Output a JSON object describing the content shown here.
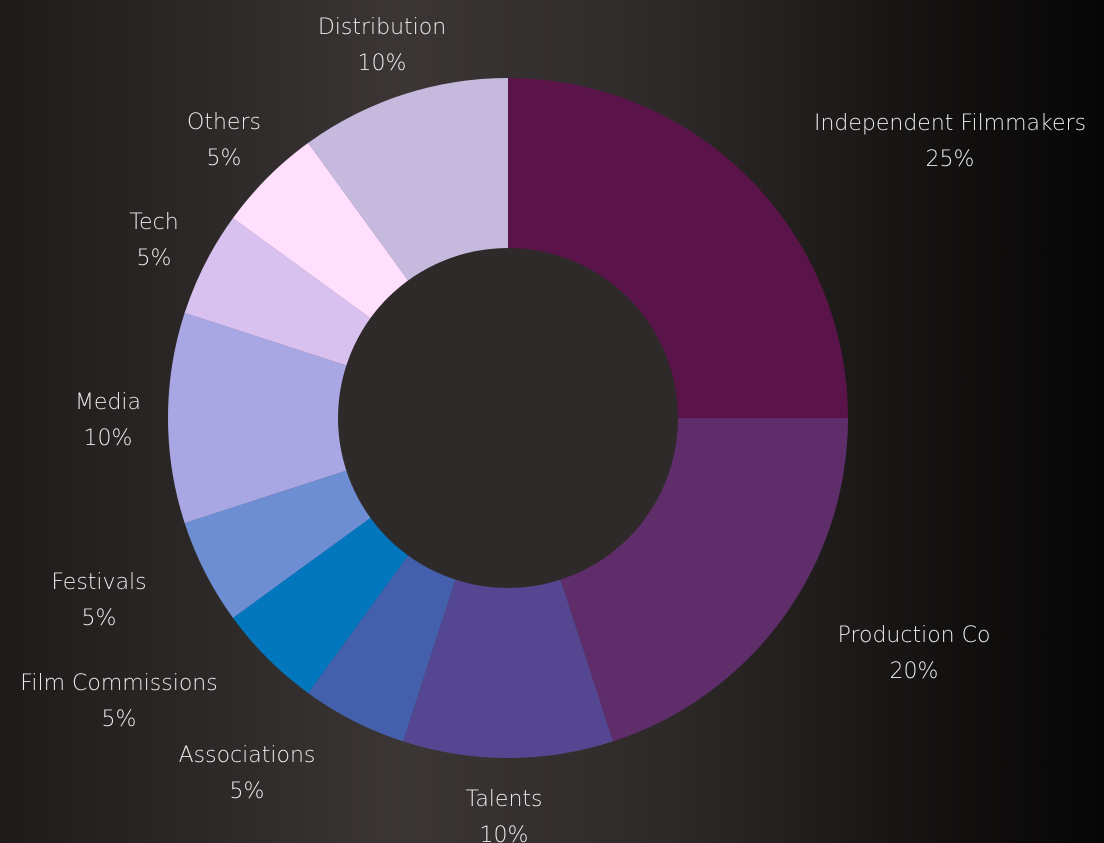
{
  "chart_data": {
    "type": "pie",
    "variant": "donut",
    "start_angle_deg": 0,
    "direction": "clockwise",
    "categories": [
      "Independent Filmmakers",
      "Production Co",
      "Talents",
      "Associations",
      "Film Commissions",
      "Festivals",
      "Media",
      "Tech",
      "Others",
      "Distribution"
    ],
    "values": [
      25,
      20,
      10,
      5,
      5,
      5,
      10,
      5,
      5,
      10
    ],
    "value_labels": [
      "25%",
      "20%",
      "10%",
      "5%",
      "5%",
      "5%",
      "10%",
      "5%",
      "5%",
      "10%"
    ],
    "colors": [
      "#5a1449",
      "#5f2d6a",
      "#544690",
      "#4460ac",
      "#0277be",
      "#6e8ed4",
      "#a9a6e4",
      "#d8c0ef",
      "#ffdefe",
      "#c5b9de"
    ],
    "legend": "none",
    "center_color": "#2e2a29"
  }
}
